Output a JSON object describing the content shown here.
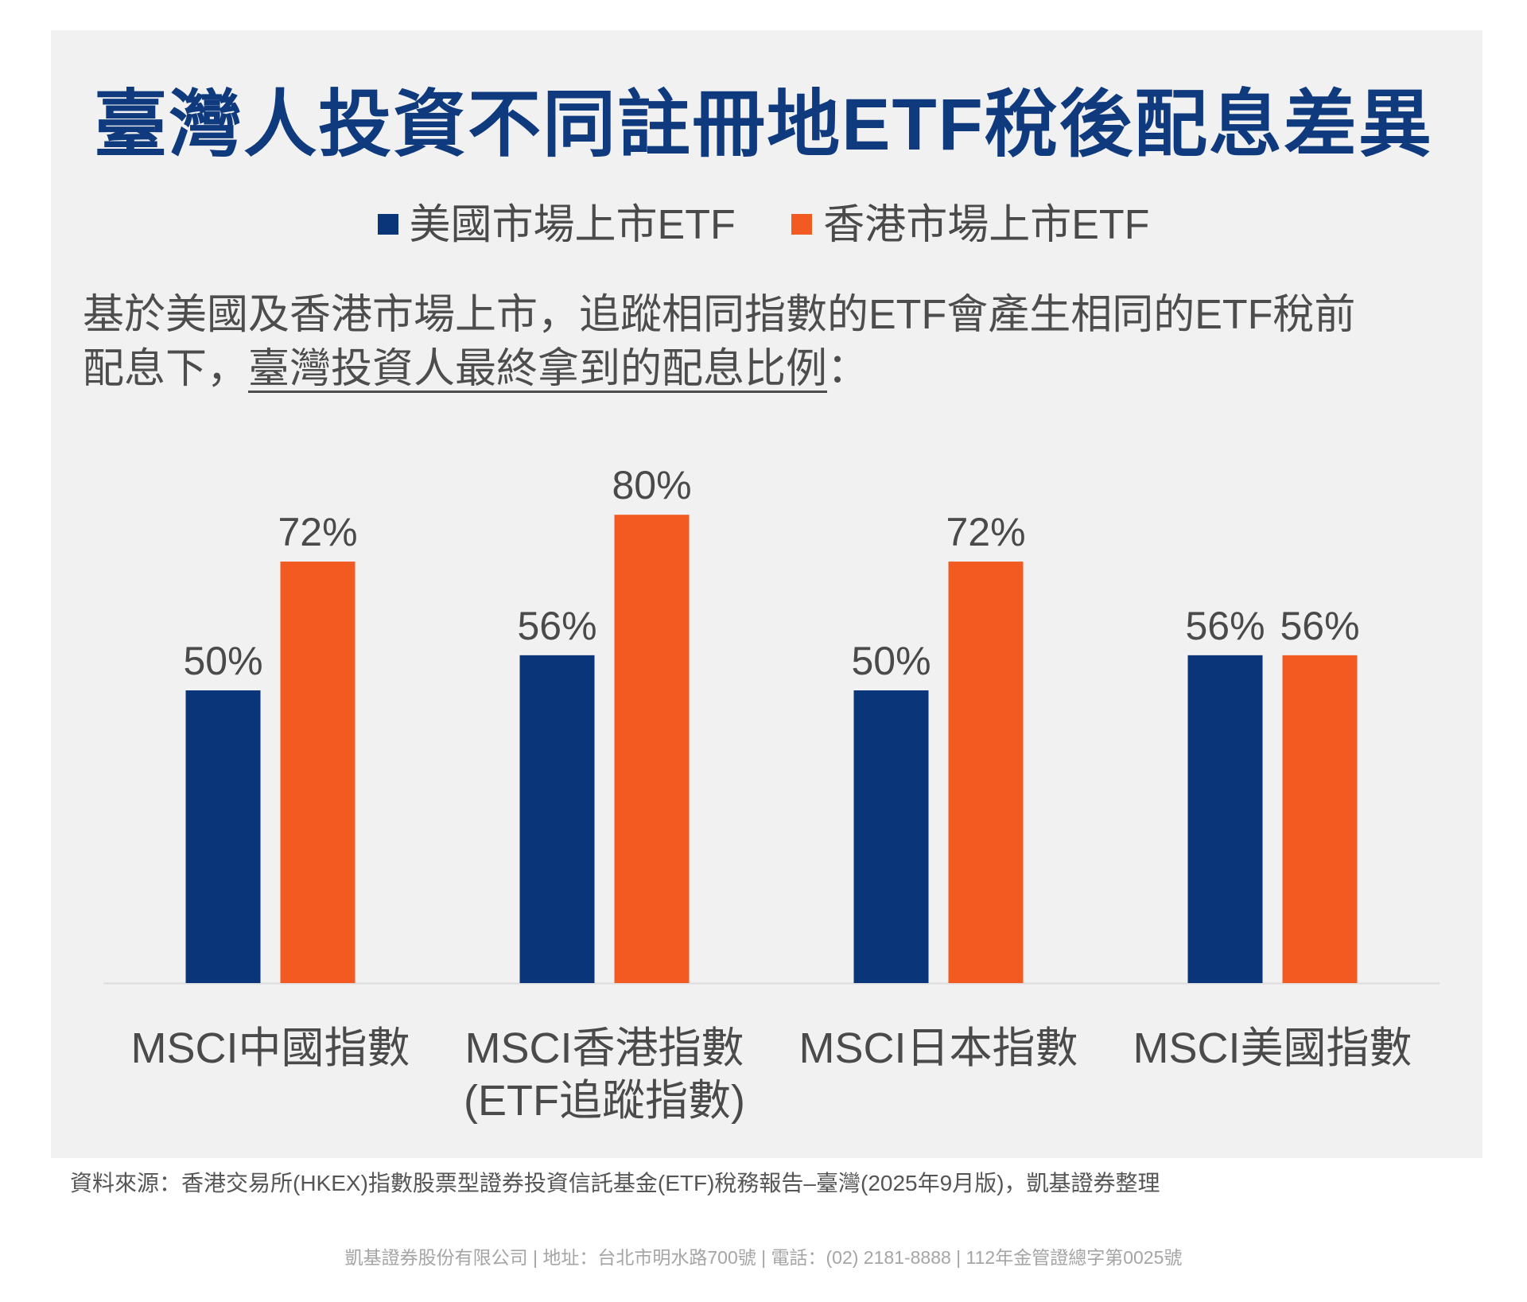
{
  "title": "臺灣人投資不同註冊地ETF稅後配息差異",
  "legend": [
    {
      "label": "美國市場上市ETF",
      "color": "#0a3578"
    },
    {
      "label": "香港市場上市ETF",
      "color": "#f25a22"
    }
  ],
  "description": {
    "line1": "基於美國及香港市場上市，追蹤相同指數的ETF會產生相同的ETF稅前",
    "line2_prefix": "配息下，",
    "line2_underlined": "臺灣投資人最終拿到的配息比例",
    "line2_suffix": "："
  },
  "chart_data": {
    "type": "bar",
    "categories": [
      [
        "MSCI中國指數"
      ],
      [
        "MSCI香港指數",
        "(ETF追蹤指數)"
      ],
      [
        "MSCI日本指數"
      ],
      [
        "MSCI美國指數"
      ]
    ],
    "series": [
      {
        "name": "美國市場上市ETF",
        "values": [
          50,
          56,
          50,
          56
        ],
        "color": "#0a3578"
      },
      {
        "name": "香港市場上市ETF",
        "values": [
          72,
          80,
          72,
          56
        ],
        "color": "#f25a22"
      }
    ],
    "value_suffix": "%",
    "ylim": [
      0,
      100
    ],
    "grid": false,
    "legend_position": "top-center"
  },
  "source": "資料來源：香港交易所(HKEX)指數股票型證券投資信託基金(ETF)稅務報告–臺灣(2025年9月版)，凱基證券整理",
  "footer": "凱基證券股份有限公司 | 地址：台北市明水路700號 | 電話：(02) 2181-8888 | 112年金管證總字第0025號"
}
